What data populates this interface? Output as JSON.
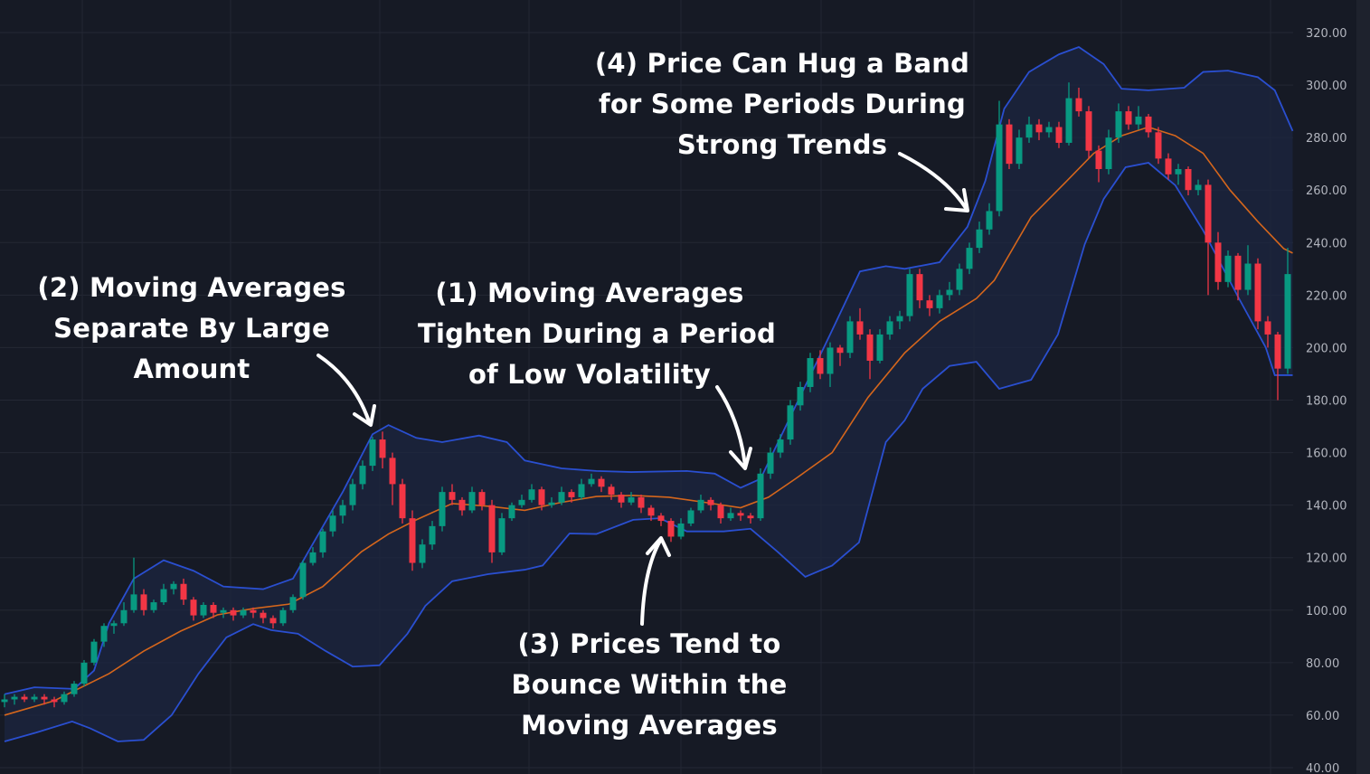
{
  "chart_data": {
    "type": "candlestick",
    "title": "",
    "xlabel": "",
    "ylabel": "",
    "ylim": [
      40,
      320
    ],
    "y_ticks": [
      "320.00",
      "300.00",
      "280.00",
      "260.00",
      "240.00",
      "220.00",
      "200.00",
      "180.00",
      "160.00",
      "140.00",
      "120.00",
      "100.00",
      "80.00",
      "60.00",
      "40.00"
    ],
    "y_tick_values": [
      320,
      300,
      280,
      260,
      240,
      220,
      200,
      180,
      160,
      140,
      120,
      100,
      80,
      60,
      40
    ],
    "axis_position": "right",
    "grid": true,
    "colors": {
      "up": "#089981",
      "down": "#f23645",
      "band": "#2a4fd0",
      "basis": "#d5661c",
      "background": "#161a25",
      "band_fill": "#1c2640"
    },
    "ohlc": [
      [
        65,
        68,
        63,
        66
      ],
      [
        66,
        68,
        64,
        67
      ],
      [
        67,
        68,
        65,
        66
      ],
      [
        66,
        68,
        65,
        67
      ],
      [
        67,
        68,
        64,
        66
      ],
      [
        66,
        67,
        63,
        65
      ],
      [
        65,
        69,
        64,
        68
      ],
      [
        68,
        73,
        67,
        72
      ],
      [
        72,
        81,
        71,
        80
      ],
      [
        80,
        89,
        79,
        88
      ],
      [
        88,
        95,
        86,
        94
      ],
      [
        94,
        96,
        91,
        95
      ],
      [
        95,
        103,
        94,
        100
      ],
      [
        100,
        120,
        99,
        106
      ],
      [
        106,
        108,
        98,
        100
      ],
      [
        100,
        104,
        99,
        103
      ],
      [
        103,
        110,
        102,
        108
      ],
      [
        108,
        111,
        106,
        110
      ],
      [
        110,
        112,
        102,
        104
      ],
      [
        104,
        105,
        96,
        98
      ],
      [
        98,
        103,
        97,
        102
      ],
      [
        102,
        103,
        97,
        99
      ],
      [
        99,
        101,
        97,
        100
      ],
      [
        100,
        101,
        96,
        98
      ],
      [
        98,
        101,
        97,
        100
      ],
      [
        100,
        101,
        97,
        99
      ],
      [
        99,
        100,
        95,
        97
      ],
      [
        97,
        98,
        93,
        95
      ],
      [
        95,
        101,
        94,
        100
      ],
      [
        100,
        106,
        99,
        105
      ],
      [
        105,
        119,
        104,
        118
      ],
      [
        118,
        124,
        117,
        122
      ],
      [
        122,
        131,
        120,
        130
      ],
      [
        130,
        138,
        128,
        136
      ],
      [
        136,
        142,
        133,
        140
      ],
      [
        140,
        150,
        138,
        148
      ],
      [
        148,
        157,
        146,
        155
      ],
      [
        155,
        166,
        153,
        165
      ],
      [
        165,
        168,
        154,
        158
      ],
      [
        158,
        160,
        140,
        148
      ],
      [
        148,
        150,
        133,
        135
      ],
      [
        135,
        138,
        115,
        118
      ],
      [
        118,
        127,
        116,
        125
      ],
      [
        125,
        134,
        123,
        132
      ],
      [
        132,
        147,
        130,
        145
      ],
      [
        145,
        148,
        140,
        142
      ],
      [
        142,
        143,
        136,
        138
      ],
      [
        138,
        147,
        137,
        145
      ],
      [
        145,
        146,
        138,
        140
      ],
      [
        140,
        142,
        118,
        122
      ],
      [
        122,
        137,
        121,
        135
      ],
      [
        135,
        141,
        134,
        140
      ],
      [
        140,
        144,
        139,
        142
      ],
      [
        142,
        148,
        141,
        146
      ],
      [
        146,
        147,
        138,
        140
      ],
      [
        140,
        143,
        139,
        141
      ],
      [
        141,
        147,
        140,
        145
      ],
      [
        145,
        146,
        141,
        143
      ],
      [
        143,
        150,
        142,
        148
      ],
      [
        148,
        152,
        147,
        150
      ],
      [
        150,
        151,
        145,
        147
      ],
      [
        147,
        148,
        142,
        144
      ],
      [
        144,
        145,
        139,
        141
      ],
      [
        141,
        145,
        140,
        143
      ],
      [
        143,
        144,
        137,
        139
      ],
      [
        139,
        140,
        134,
        136
      ],
      [
        136,
        137,
        132,
        134
      ],
      [
        134,
        135,
        126,
        128
      ],
      [
        128,
        135,
        127,
        133
      ],
      [
        133,
        139,
        132,
        138
      ],
      [
        138,
        144,
        137,
        142
      ],
      [
        142,
        143,
        138,
        140
      ],
      [
        140,
        141,
        133,
        135
      ],
      [
        135,
        139,
        134,
        137
      ],
      [
        137,
        138,
        134,
        136
      ],
      [
        136,
        137,
        133,
        135
      ],
      [
        135,
        154,
        134,
        152
      ],
      [
        152,
        162,
        150,
        160
      ],
      [
        160,
        167,
        158,
        165
      ],
      [
        165,
        180,
        163,
        178
      ],
      [
        178,
        187,
        176,
        185
      ],
      [
        185,
        198,
        183,
        196
      ],
      [
        196,
        199,
        188,
        190
      ],
      [
        190,
        202,
        185,
        200
      ],
      [
        200,
        201,
        193,
        198
      ],
      [
        198,
        212,
        196,
        210
      ],
      [
        210,
        215,
        203,
        205
      ],
      [
        205,
        207,
        188,
        195
      ],
      [
        195,
        207,
        194,
        205
      ],
      [
        205,
        212,
        203,
        210
      ],
      [
        210,
        214,
        207,
        212
      ],
      [
        212,
        230,
        210,
        228
      ],
      [
        228,
        230,
        215,
        218
      ],
      [
        218,
        220,
        212,
        215
      ],
      [
        215,
        222,
        213,
        220
      ],
      [
        220,
        225,
        218,
        222
      ],
      [
        222,
        232,
        220,
        230
      ],
      [
        230,
        240,
        228,
        238
      ],
      [
        238,
        248,
        236,
        245
      ],
      [
        245,
        255,
        243,
        252
      ],
      [
        252,
        294,
        250,
        285
      ],
      [
        285,
        287,
        268,
        270
      ],
      [
        270,
        283,
        268,
        280
      ],
      [
        280,
        288,
        278,
        285
      ],
      [
        285,
        287,
        279,
        282
      ],
      [
        282,
        286,
        280,
        284
      ],
      [
        284,
        286,
        276,
        278
      ],
      [
        278,
        301,
        277,
        295
      ],
      [
        295,
        299,
        288,
        290
      ],
      [
        290,
        292,
        272,
        275
      ],
      [
        275,
        277,
        263,
        268
      ],
      [
        268,
        283,
        266,
        280
      ],
      [
        280,
        293,
        278,
        290
      ],
      [
        290,
        292,
        283,
        285
      ],
      [
        285,
        292,
        283,
        288
      ],
      [
        288,
        289,
        280,
        282
      ],
      [
        282,
        284,
        270,
        272
      ],
      [
        272,
        274,
        264,
        266
      ],
      [
        266,
        270,
        262,
        268
      ],
      [
        268,
        269,
        258,
        260
      ],
      [
        260,
        264,
        258,
        262
      ],
      [
        262,
        264,
        220,
        240
      ],
      [
        240,
        244,
        222,
        225
      ],
      [
        225,
        237,
        223,
        235
      ],
      [
        235,
        236,
        218,
        222
      ],
      [
        222,
        239,
        220,
        232
      ],
      [
        232,
        234,
        207,
        210
      ],
      [
        210,
        212,
        200,
        205
      ],
      [
        205,
        206,
        180,
        192
      ],
      [
        192,
        238,
        190,
        228
      ]
    ],
    "bollinger": {
      "upper": [
        [
          0,
          68
        ],
        [
          3,
          70.6
        ],
        [
          7,
          70
        ],
        [
          9,
          77
        ],
        [
          10.5,
          95
        ],
        [
          13,
          112
        ],
        [
          16,
          119
        ],
        [
          19,
          115
        ],
        [
          22,
          109
        ],
        [
          26,
          108
        ],
        [
          29,
          112
        ],
        [
          30.5,
          122
        ],
        [
          34,
          145
        ],
        [
          37,
          167
        ],
        [
          38.6,
          170.5
        ],
        [
          41.4,
          165.6
        ],
        [
          44,
          164
        ],
        [
          47.7,
          166.5
        ],
        [
          50.5,
          164
        ],
        [
          52.3,
          157
        ],
        [
          56,
          154
        ],
        [
          59.5,
          153
        ],
        [
          63,
          152.6
        ],
        [
          68.6,
          153
        ],
        [
          71.4,
          152
        ],
        [
          74,
          146.6
        ],
        [
          76,
          150
        ],
        [
          79.5,
          177.6
        ],
        [
          83,
          205
        ],
        [
          86,
          229
        ],
        [
          88.6,
          231
        ],
        [
          90.5,
          230
        ],
        [
          94,
          232.5
        ],
        [
          96.8,
          246
        ],
        [
          98.6,
          263.5
        ],
        [
          100.5,
          291
        ],
        [
          103,
          305
        ],
        [
          106,
          311.7
        ],
        [
          108,
          314.5
        ],
        [
          110.5,
          308
        ],
        [
          112.3,
          298.6
        ],
        [
          115,
          298
        ],
        [
          118.6,
          299
        ],
        [
          120.5,
          305
        ],
        [
          123,
          305.5
        ],
        [
          126,
          303
        ],
        [
          127.7,
          298
        ],
        [
          129.5,
          282.5
        ]
      ],
      "basis": [
        [
          0,
          60
        ],
        [
          5,
          65.5
        ],
        [
          10.5,
          75.8
        ],
        [
          14,
          84.4
        ],
        [
          17.7,
          92
        ],
        [
          21.4,
          98.2
        ],
        [
          25,
          100.6
        ],
        [
          28.6,
          102.3
        ],
        [
          32,
          109
        ],
        [
          35.9,
          122.3
        ],
        [
          38.6,
          129
        ],
        [
          41.4,
          134.4
        ],
        [
          45,
          140.6
        ],
        [
          48.6,
          139.6
        ],
        [
          52.3,
          138
        ],
        [
          55.9,
          141
        ],
        [
          59.5,
          143.3
        ],
        [
          63.2,
          143.7
        ],
        [
          66.8,
          143
        ],
        [
          70.5,
          141
        ],
        [
          74,
          139
        ],
        [
          76.8,
          143
        ],
        [
          79.5,
          150
        ],
        [
          83.2,
          160
        ],
        [
          86.8,
          181
        ],
        [
          90.5,
          198
        ],
        [
          94,
          210
        ],
        [
          97.7,
          218.7
        ],
        [
          99.5,
          225.6
        ],
        [
          103.2,
          249.7
        ],
        [
          106.8,
          263.5
        ],
        [
          109.5,
          274
        ],
        [
          112.3,
          280.7
        ],
        [
          115,
          284
        ],
        [
          117.7,
          280.7
        ],
        [
          120.5,
          274
        ],
        [
          123.2,
          260
        ],
        [
          126,
          248
        ],
        [
          128.6,
          237.7
        ],
        [
          129.5,
          236
        ]
      ],
      "lower": [
        [
          0,
          50
        ],
        [
          3.2,
          53.4
        ],
        [
          6.8,
          57.6
        ],
        [
          8.6,
          55
        ],
        [
          11.4,
          50
        ],
        [
          14,
          50.6
        ],
        [
          16.8,
          60
        ],
        [
          19.5,
          75.8
        ],
        [
          22.3,
          89.6
        ],
        [
          25,
          94.7
        ],
        [
          26.8,
          92.4
        ],
        [
          29.5,
          91
        ],
        [
          32.3,
          84.4
        ],
        [
          35,
          78.5
        ],
        [
          37.7,
          79
        ],
        [
          40.5,
          91
        ],
        [
          42.3,
          101.6
        ],
        [
          45,
          111
        ],
        [
          48.6,
          113.7
        ],
        [
          52.3,
          115.4
        ],
        [
          54.1,
          117
        ],
        [
          56.8,
          129.2
        ],
        [
          59.5,
          129
        ],
        [
          63.2,
          134.4
        ],
        [
          65.9,
          135
        ],
        [
          68.6,
          130
        ],
        [
          72.3,
          130
        ],
        [
          75,
          131
        ],
        [
          77.7,
          122.3
        ],
        [
          80.5,
          112.7
        ],
        [
          83.2,
          117
        ],
        [
          85.9,
          125.8
        ],
        [
          88.6,
          164
        ],
        [
          90.5,
          172.3
        ],
        [
          92.3,
          184.3
        ],
        [
          95,
          193
        ],
        [
          97.7,
          194.6
        ],
        [
          100,
          184.3
        ],
        [
          103.2,
          187.7
        ],
        [
          105.9,
          205
        ],
        [
          108.6,
          239.4
        ],
        [
          110.5,
          256.6
        ],
        [
          112.7,
          268.7
        ],
        [
          115,
          270.4
        ],
        [
          117.7,
          261.8
        ],
        [
          120.5,
          244.6
        ],
        [
          124.1,
          218.7
        ],
        [
          126.8,
          200
        ],
        [
          127.7,
          189.5
        ],
        [
          129.5,
          189.5
        ]
      ]
    }
  },
  "annotations": {
    "a1": {
      "lines": [
        "(1) Moving Averages",
        "Tighten During a Period",
        "of Low Volatility"
      ]
    },
    "a2": {
      "lines": [
        "(2) Moving Averages",
        "Separate By Large",
        "Amount"
      ]
    },
    "a3": {
      "lines": [
        "(3) Prices Tend to",
        "Bounce Within the",
        "Moving Averages"
      ]
    },
    "a4": {
      "lines": [
        "(4) Price Can Hug a Band",
        "for Some Periods During",
        "Strong Trends"
      ]
    },
    "arrow_color": "#ffffff"
  }
}
